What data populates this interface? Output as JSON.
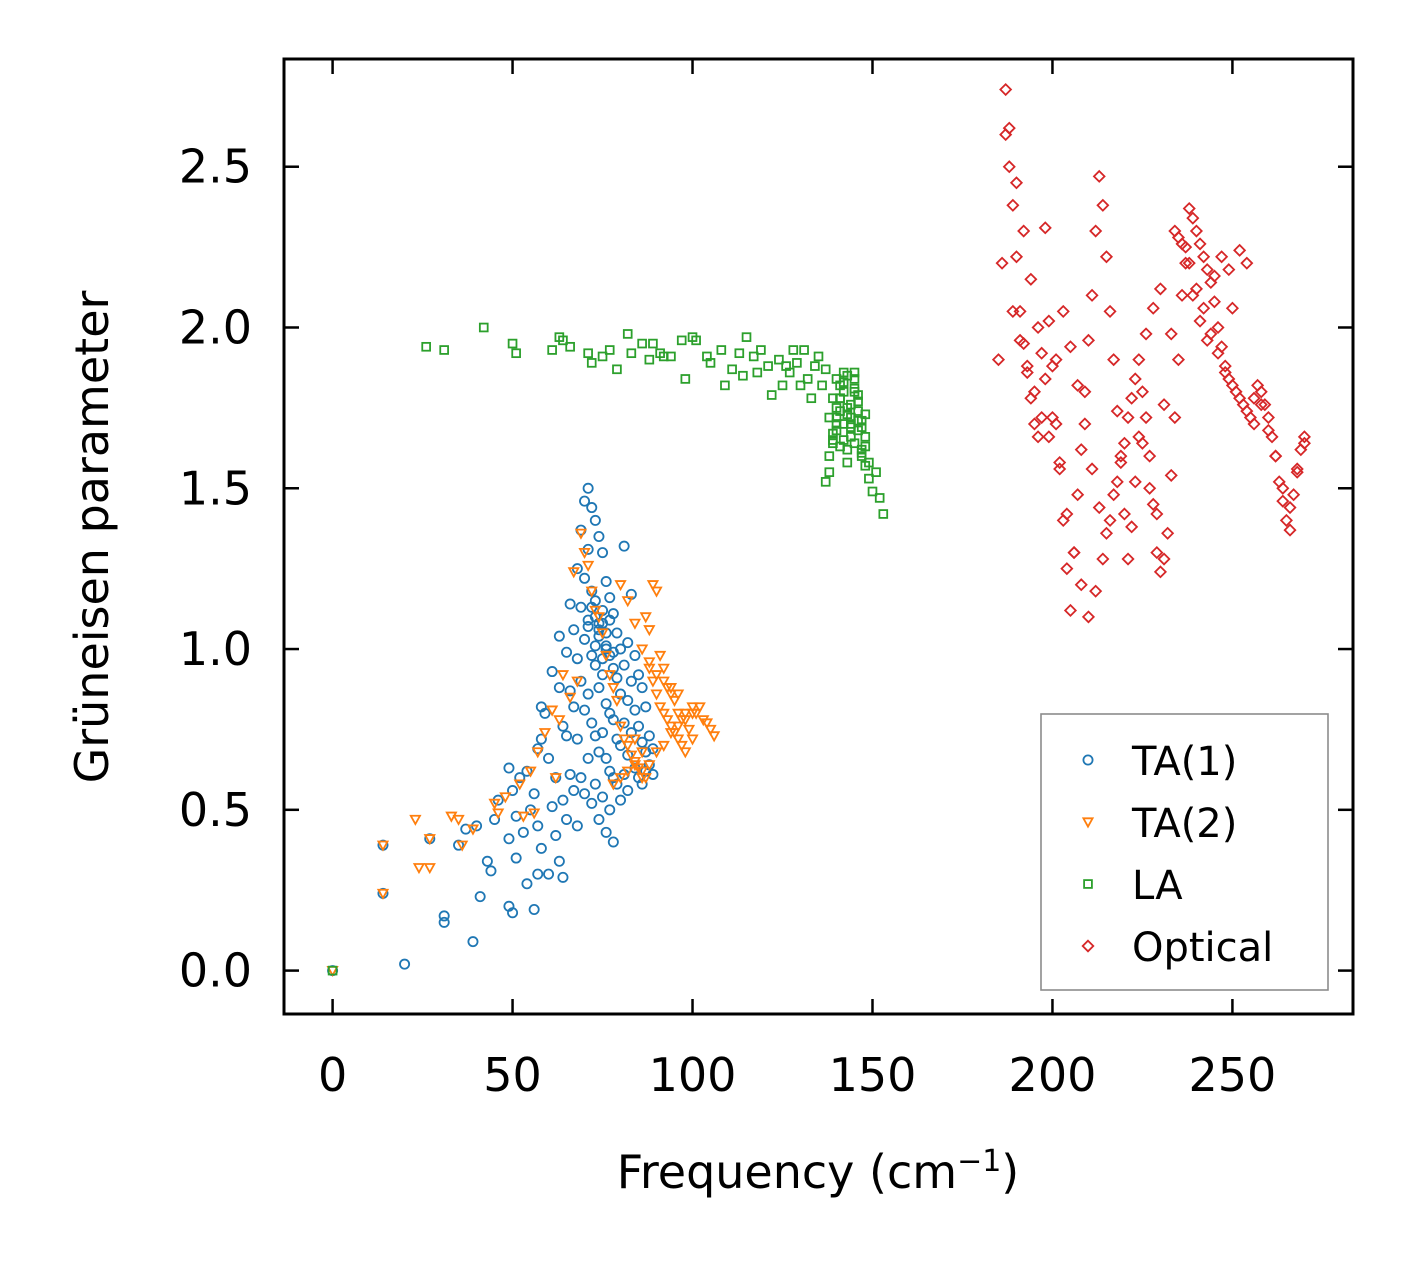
{
  "chart_data": {
    "type": "scatter",
    "title": "",
    "xlabel_main": "Frequency (cm",
    "xlabel_sup": "−1",
    "xlabel_end": ")",
    "ylabel": "Grüneisen parameter",
    "xlim": [
      -13.5,
      283.5
    ],
    "ylim": [
      -0.135,
      2.835
    ],
    "xticks": [
      0,
      50,
      100,
      150,
      200,
      250
    ],
    "xtick_labels": [
      "0",
      "50",
      "100",
      "150",
      "200",
      "250"
    ],
    "yticks": [
      0.0,
      0.5,
      1.0,
      1.5,
      2.0,
      2.5
    ],
    "ytick_labels": [
      "0.0",
      "0.5",
      "1.0",
      "1.5",
      "2.0",
      "2.5"
    ],
    "legend_position": "lower-right",
    "series": [
      {
        "name": "TA(1)",
        "marker": "circle",
        "color": "#1f77b4",
        "x": [
          0,
          14,
          14,
          20,
          27,
          31,
          31,
          35,
          37,
          39,
          40,
          41,
          43,
          44,
          45,
          46,
          49,
          49,
          49,
          50,
          50,
          51,
          51,
          52,
          53,
          54,
          54,
          55,
          56,
          56,
          57,
          57,
          57,
          58,
          58,
          58,
          59,
          60,
          60,
          61,
          61,
          62,
          62,
          63,
          63,
          63,
          64,
          64,
          64,
          65,
          65,
          65,
          66,
          66,
          66,
          67,
          67,
          67,
          68,
          68,
          68,
          68,
          69,
          69,
          69,
          69,
          70,
          70,
          70,
          70,
          70,
          71,
          71,
          71,
          71,
          71,
          72,
          72,
          72,
          72,
          72,
          73,
          73,
          73,
          73,
          73,
          74,
          74,
          74,
          74,
          74,
          75,
          75,
          75,
          75,
          75,
          76,
          76,
          76,
          76,
          76,
          77,
          77,
          77,
          77,
          77,
          78,
          78,
          78,
          78,
          78,
          79,
          79,
          79,
          79,
          80,
          80,
          80,
          80,
          81,
          81,
          81,
          81,
          82,
          82,
          82,
          82,
          83,
          83,
          83,
          84,
          84,
          84,
          85,
          85,
          85,
          86,
          86,
          86,
          87,
          87,
          87,
          88,
          88,
          89,
          89,
          73,
          74,
          75,
          76,
          71,
          72,
          73,
          74,
          75,
          76,
          77,
          78
        ],
        "y": [
          0.0,
          0.39,
          0.24,
          0.02,
          0.41,
          0.15,
          0.17,
          0.39,
          0.44,
          0.09,
          0.45,
          0.23,
          0.34,
          0.31,
          0.47,
          0.53,
          0.63,
          0.41,
          0.2,
          0.18,
          0.56,
          0.35,
          0.48,
          0.6,
          0.43,
          0.62,
          0.27,
          0.5,
          0.55,
          0.19,
          0.69,
          0.45,
          0.3,
          0.72,
          0.82,
          0.38,
          0.8,
          0.66,
          0.3,
          0.51,
          0.93,
          0.6,
          0.42,
          1.04,
          0.88,
          0.34,
          0.76,
          0.53,
          0.29,
          0.99,
          0.73,
          0.47,
          1.14,
          0.87,
          0.61,
          1.06,
          0.82,
          0.56,
          1.25,
          0.97,
          0.72,
          0.45,
          1.37,
          1.13,
          0.9,
          0.6,
          1.46,
          1.22,
          1.03,
          0.81,
          0.55,
          1.5,
          1.31,
          1.09,
          0.86,
          0.66,
          1.44,
          1.18,
          0.98,
          0.77,
          0.52,
          1.4,
          1.15,
          0.95,
          0.73,
          0.58,
          1.35,
          1.06,
          0.88,
          0.68,
          0.47,
          1.3,
          1.08,
          0.92,
          0.74,
          0.54,
          1.21,
          1.01,
          0.83,
          0.66,
          0.43,
          1.16,
          0.98,
          0.8,
          0.62,
          0.5,
          1.11,
          0.94,
          0.78,
          0.6,
          0.4,
          1.05,
          0.91,
          0.72,
          0.58,
          1.0,
          0.86,
          0.7,
          0.53,
          1.32,
          0.95,
          0.77,
          0.61,
          1.02,
          0.84,
          0.67,
          0.56,
          1.17,
          0.9,
          0.74,
          0.98,
          0.81,
          0.63,
          0.92,
          0.76,
          0.6,
          0.88,
          0.71,
          0.58,
          0.82,
          0.68,
          0.62,
          0.73,
          0.64,
          0.69,
          0.61,
          1.1,
          1.04,
          1.12,
          1.0,
          1.07,
          1.13,
          1.01,
          1.08,
          0.97,
          1.05,
          1.09,
          0.99
        ],
        "x2": [],
        "y2": []
      },
      {
        "name": "TA(2)",
        "marker": "triangle-down",
        "color": "#ff7f0e",
        "x": [
          0,
          14,
          14,
          23,
          24,
          27,
          27,
          33,
          35,
          36,
          39,
          45,
          46,
          48,
          52,
          53,
          55,
          56,
          57,
          59,
          61,
          62,
          63,
          64,
          66,
          67,
          68,
          69,
          70,
          71,
          72,
          73,
          74,
          75,
          76,
          77,
          78,
          79,
          80,
          81,
          82,
          83,
          84,
          85,
          86,
          87,
          87,
          88,
          88,
          89,
          89,
          90,
          90,
          91,
          91,
          92,
          92,
          93,
          93,
          94,
          94,
          95,
          95,
          96,
          96,
          97,
          97,
          98,
          98,
          99,
          100,
          100,
          101,
          102,
          103,
          104,
          105,
          106,
          84,
          86,
          88,
          90,
          92,
          94,
          96,
          98,
          100,
          80,
          82,
          84,
          86,
          88,
          90,
          92,
          94,
          96,
          78,
          80,
          82,
          84,
          86
        ],
        "y": [
          0.0,
          0.39,
          0.24,
          0.47,
          0.32,
          0.41,
          0.32,
          0.48,
          0.47,
          0.39,
          0.44,
          0.52,
          0.49,
          0.54,
          0.58,
          0.48,
          0.62,
          0.49,
          0.68,
          0.74,
          0.81,
          0.6,
          0.78,
          0.92,
          0.85,
          1.24,
          0.9,
          1.36,
          1.3,
          1.26,
          1.18,
          1.12,
          1.1,
          1.05,
          0.98,
          0.92,
          0.88,
          0.84,
          0.76,
          0.72,
          0.7,
          0.67,
          0.65,
          0.63,
          0.62,
          1.1,
          0.6,
          1.06,
          0.94,
          1.2,
          0.9,
          0.86,
          1.18,
          0.82,
          0.98,
          0.8,
          0.94,
          0.78,
          0.88,
          0.76,
          0.86,
          0.74,
          0.84,
          0.72,
          0.8,
          0.7,
          0.78,
          0.68,
          0.8,
          0.75,
          0.82,
          0.72,
          0.8,
          0.82,
          0.78,
          0.77,
          0.75,
          0.73,
          0.72,
          0.68,
          0.64,
          0.68,
          0.7,
          0.74,
          0.76,
          0.78,
          0.8,
          1.2,
          1.15,
          1.08,
          1.0,
          0.96,
          0.92,
          0.9,
          0.88,
          0.86,
          0.58,
          0.6,
          0.62,
          0.64,
          0.6
        ],
        "x2": [],
        "y2": []
      },
      {
        "name": "LA",
        "marker": "square",
        "color": "#2ca02c",
        "x": [
          0,
          26,
          31,
          42,
          50,
          51,
          61,
          63,
          64,
          66,
          71,
          72,
          75,
          77,
          79,
          82,
          83,
          86,
          88,
          89,
          91,
          92,
          94,
          97,
          98,
          100,
          101,
          104,
          105,
          108,
          109,
          111,
          113,
          114,
          115,
          117,
          118,
          119,
          121,
          122,
          124,
          125,
          126,
          127,
          128,
          129,
          130,
          131,
          132,
          133,
          134,
          135,
          136,
          137,
          138,
          139,
          140,
          141,
          142,
          143,
          144,
          145,
          146,
          147,
          148,
          149,
          150,
          151,
          152,
          153,
          137,
          138,
          139,
          140,
          141,
          142,
          143,
          144,
          145,
          146,
          147,
          138,
          139,
          140,
          141,
          142,
          143,
          144,
          145,
          146,
          147,
          148,
          139,
          140,
          141,
          142,
          143,
          144,
          145,
          146,
          147,
          148,
          149,
          140,
          141,
          142,
          143,
          144,
          145,
          146,
          147,
          148
        ],
        "y": [
          0.0,
          1.94,
          1.93,
          2.0,
          1.95,
          1.92,
          1.93,
          1.97,
          1.96,
          1.94,
          1.92,
          1.89,
          1.91,
          1.93,
          1.87,
          1.98,
          1.92,
          1.95,
          1.9,
          1.95,
          1.92,
          1.91,
          1.91,
          1.96,
          1.84,
          1.97,
          1.96,
          1.91,
          1.89,
          1.93,
          1.82,
          1.87,
          1.92,
          1.85,
          1.97,
          1.91,
          1.86,
          1.93,
          1.88,
          1.79,
          1.9,
          1.82,
          1.88,
          1.86,
          1.93,
          1.89,
          1.82,
          1.93,
          1.84,
          1.78,
          1.88,
          1.91,
          1.82,
          1.87,
          1.72,
          1.78,
          1.84,
          1.63,
          1.83,
          1.75,
          1.69,
          1.86,
          1.71,
          1.61,
          1.73,
          1.53,
          1.49,
          1.55,
          1.47,
          1.42,
          1.52,
          1.6,
          1.67,
          1.72,
          1.78,
          1.65,
          1.58,
          1.7,
          1.8,
          1.74,
          1.62,
          1.55,
          1.65,
          1.75,
          1.82,
          1.7,
          1.62,
          1.76,
          1.84,
          1.68,
          1.6,
          1.57,
          1.64,
          1.7,
          1.78,
          1.86,
          1.73,
          1.66,
          1.81,
          1.77,
          1.69,
          1.63,
          1.58,
          1.68,
          1.74,
          1.8,
          1.85,
          1.72,
          1.64,
          1.79,
          1.71,
          1.66
        ],
        "x2": [],
        "y2": []
      },
      {
        "name": "Optical",
        "marker": "diamond",
        "color": "#d62728",
        "x": [
          185,
          187,
          188,
          189,
          190,
          191,
          192,
          193,
          194,
          195,
          196,
          197,
          198,
          199,
          200,
          201,
          202,
          203,
          204,
          205,
          206,
          207,
          208,
          209,
          210,
          211,
          212,
          213,
          214,
          215,
          216,
          217,
          218,
          219,
          220,
          221,
          222,
          223,
          224,
          225,
          226,
          227,
          228,
          229,
          230,
          231,
          232,
          233,
          234,
          235,
          236,
          237,
          238,
          239,
          240,
          241,
          242,
          243,
          244,
          245,
          246,
          247,
          248,
          249,
          250,
          251,
          252,
          253,
          254,
          255,
          256,
          257,
          258,
          259,
          260,
          261,
          262,
          263,
          264,
          265,
          266,
          267,
          268,
          269,
          270,
          187,
          188,
          190,
          192,
          194,
          196,
          198,
          200,
          202,
          204,
          206,
          208,
          210,
          212,
          214,
          216,
          218,
          220,
          222,
          224,
          226,
          228,
          230,
          186,
          189,
          191,
          193,
          195,
          197,
          199,
          201,
          203,
          205,
          207,
          209,
          211,
          213,
          215,
          217,
          219,
          221,
          223,
          225,
          227,
          229,
          231,
          233,
          235,
          237,
          239,
          241,
          243,
          245,
          247,
          249,
          234,
          236,
          238,
          240,
          242,
          244,
          246,
          248,
          250,
          252,
          254,
          256,
          258,
          260,
          262,
          264,
          266,
          268,
          270
        ],
        "y": [
          1.9,
          2.74,
          2.62,
          2.38,
          2.22,
          2.05,
          1.95,
          1.86,
          1.78,
          1.7,
          1.66,
          1.92,
          2.31,
          2.02,
          1.88,
          1.7,
          1.58,
          1.4,
          1.25,
          1.12,
          1.3,
          1.48,
          1.62,
          1.8,
          1.96,
          2.1,
          2.3,
          2.47,
          2.38,
          2.22,
          2.05,
          1.9,
          1.74,
          1.58,
          1.42,
          1.28,
          1.38,
          1.52,
          1.66,
          1.8,
          1.72,
          1.6,
          1.45,
          1.3,
          1.24,
          1.28,
          1.36,
          1.54,
          1.72,
          1.9,
          2.1,
          2.25,
          2.37,
          2.34,
          2.3,
          2.26,
          2.22,
          2.18,
          2.14,
          2.08,
          2.0,
          1.94,
          1.88,
          1.84,
          1.82,
          1.8,
          1.78,
          1.76,
          1.74,
          1.72,
          1.7,
          1.82,
          1.8,
          1.76,
          1.72,
          1.66,
          1.6,
          1.52,
          1.46,
          1.4,
          1.37,
          1.48,
          1.56,
          1.62,
          1.66,
          2.6,
          2.5,
          2.45,
          2.3,
          2.15,
          2.0,
          1.84,
          1.72,
          1.56,
          1.42,
          1.3,
          1.2,
          1.1,
          1.18,
          1.28,
          1.4,
          1.52,
          1.64,
          1.78,
          1.9,
          1.98,
          2.06,
          2.12,
          2.2,
          2.05,
          1.96,
          1.88,
          1.8,
          1.72,
          1.66,
          1.9,
          2.05,
          1.94,
          1.82,
          1.7,
          1.56,
          1.44,
          1.36,
          1.48,
          1.6,
          1.72,
          1.84,
          1.64,
          1.5,
          1.42,
          1.76,
          1.98,
          2.28,
          2.2,
          2.1,
          2.02,
          1.96,
          2.16,
          2.22,
          2.18,
          2.3,
          2.26,
          2.2,
          2.12,
          2.06,
          1.98,
          1.92,
          1.86,
          2.06,
          2.24,
          2.2,
          1.78,
          1.76,
          1.68,
          1.6,
          1.5,
          1.44,
          1.55,
          1.64
        ],
        "x2": [],
        "y2": []
      }
    ]
  }
}
